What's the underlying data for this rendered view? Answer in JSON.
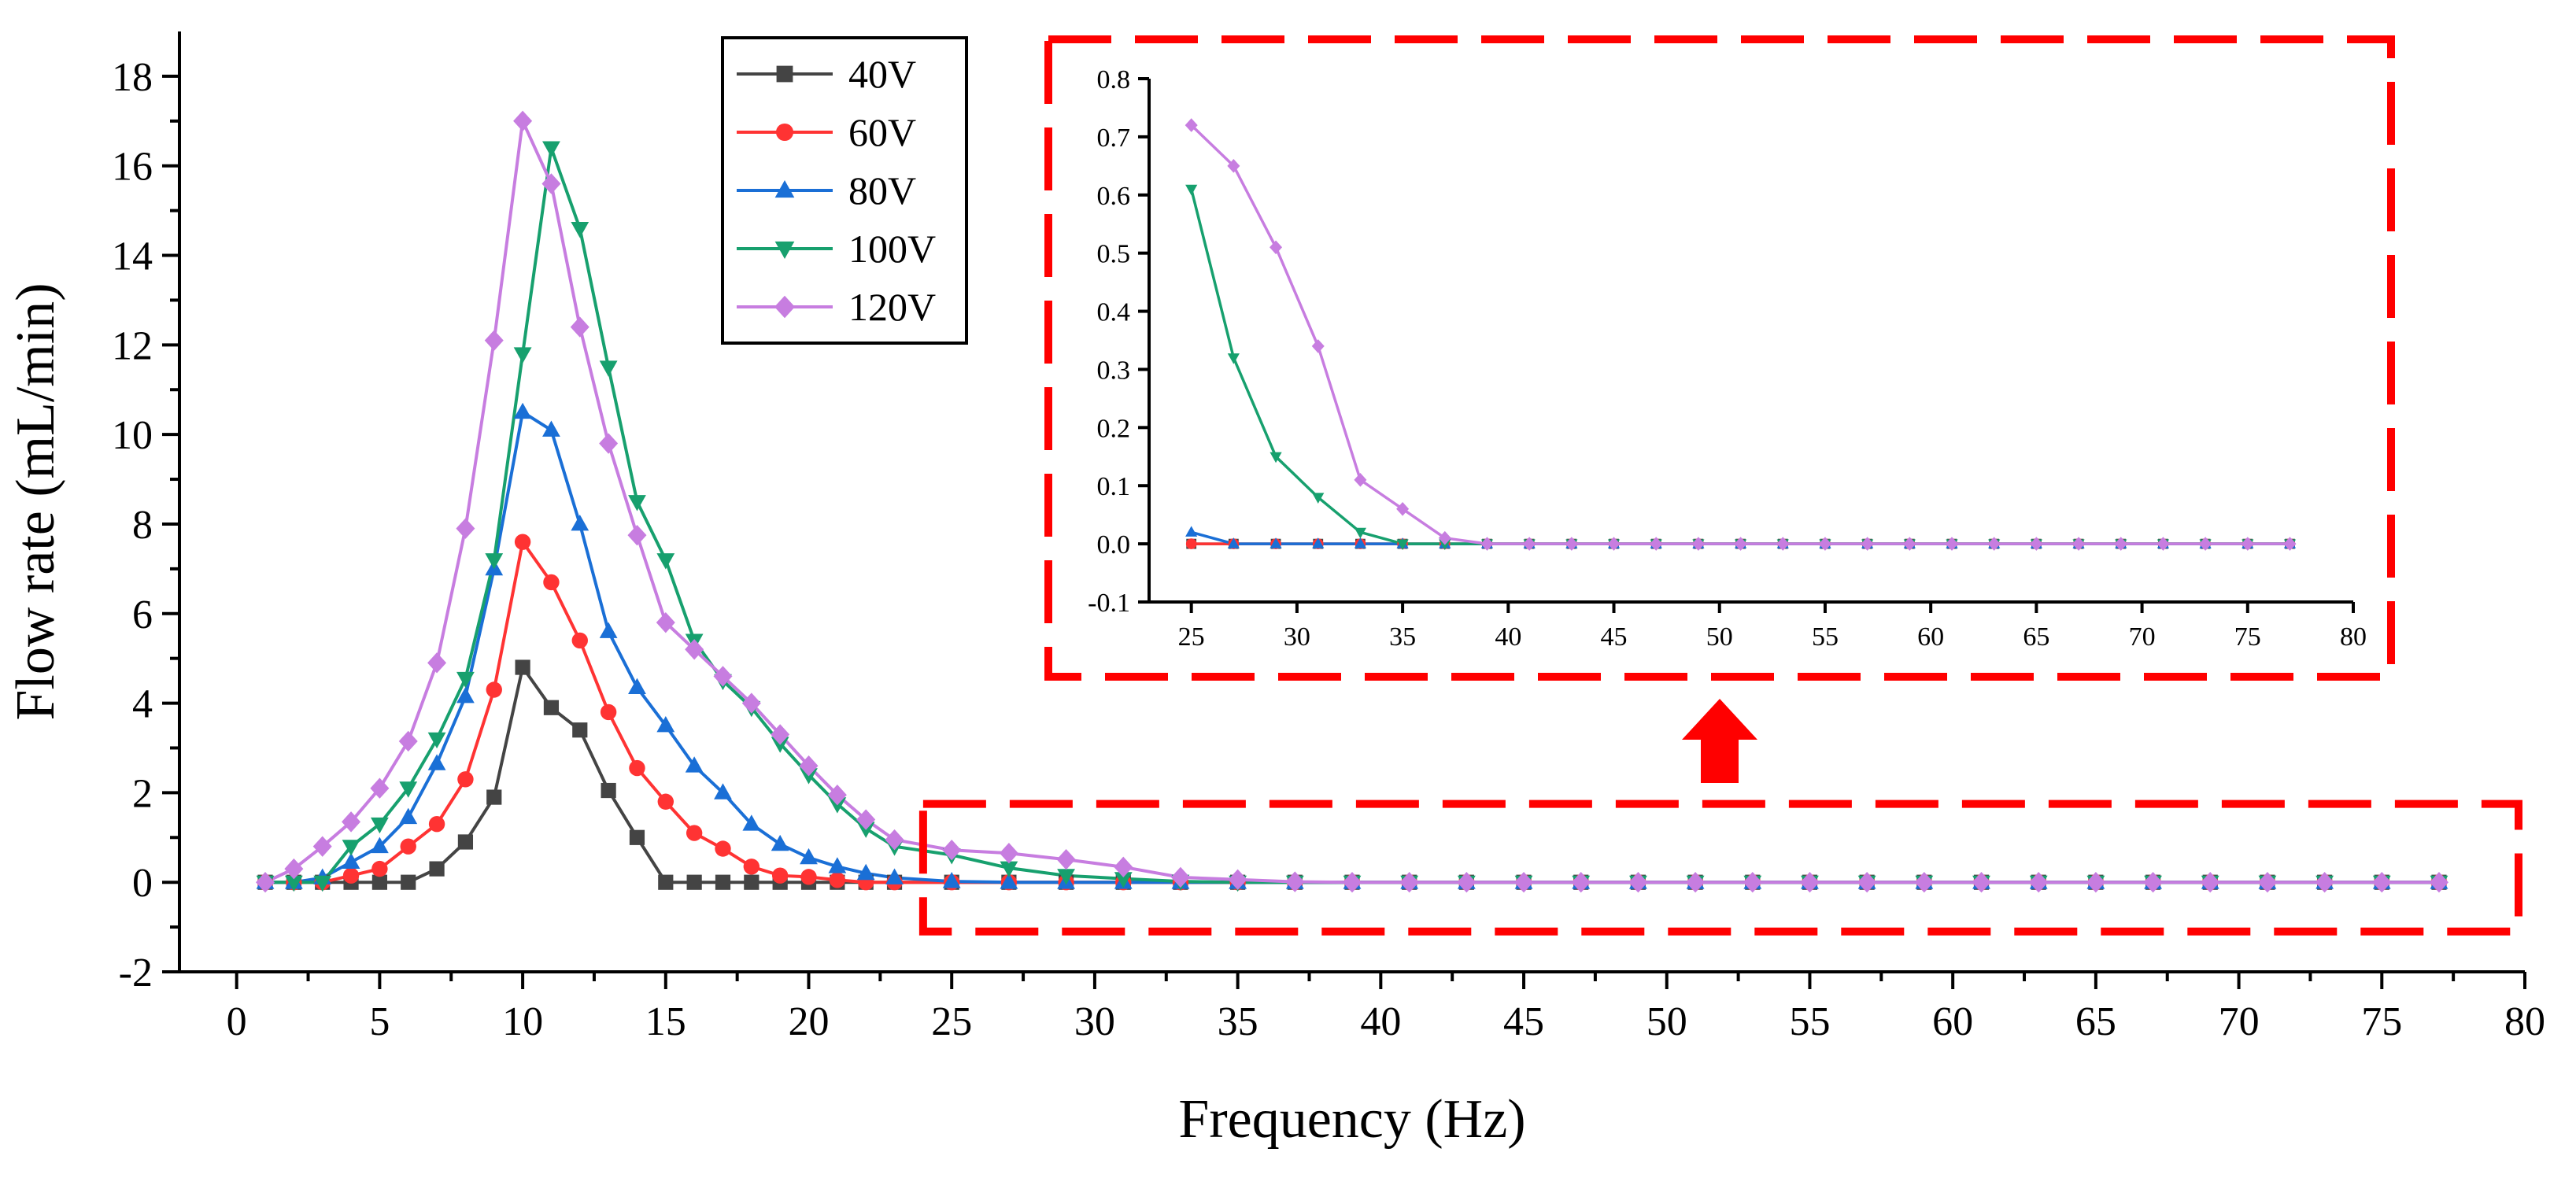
{
  "chart_data": [
    {
      "type": "line",
      "title": "",
      "xlabel": "Frequency (Hz)",
      "ylabel": "Flow rate (mL/min)",
      "xlim": [
        -2,
        80
      ],
      "ylim": [
        -2,
        19
      ],
      "xticks": [
        0,
        5,
        10,
        15,
        20,
        25,
        30,
        35,
        40,
        45,
        50,
        55,
        60,
        65,
        70,
        75,
        80
      ],
      "yticks": [
        -2,
        0,
        2,
        4,
        6,
        8,
        10,
        12,
        14,
        16,
        18
      ],
      "grid": false,
      "legend_position": "top-center",
      "series": [
        {
          "name": "40V",
          "color": "#444444",
          "marker": "square",
          "x": [
            1,
            2,
            3,
            4,
            5,
            6,
            7,
            8,
            9,
            10,
            11,
            12,
            13,
            14,
            15,
            16,
            17,
            18,
            19,
            20,
            21,
            22,
            23,
            25,
            27,
            29,
            31,
            33,
            35,
            37,
            39,
            41,
            43,
            45,
            47,
            49,
            51,
            53,
            55,
            57,
            59,
            61,
            63,
            65,
            67,
            69,
            71,
            73,
            75,
            77
          ],
          "y": [
            0,
            0,
            0,
            0,
            0,
            0,
            0.3,
            0.9,
            1.9,
            4.8,
            3.9,
            3.4,
            2.05,
            1.0,
            0,
            0,
            0,
            0,
            0,
            0,
            0,
            0,
            0,
            0,
            0,
            0,
            0,
            0,
            0,
            0,
            0,
            0,
            0,
            0,
            0,
            0,
            0,
            0,
            0,
            0,
            0,
            0,
            0,
            0,
            0,
            0,
            0,
            0,
            0,
            0
          ]
        },
        {
          "name": "60V",
          "color": "#ff3333",
          "marker": "circle",
          "x": [
            1,
            2,
            3,
            4,
            5,
            6,
            7,
            8,
            9,
            10,
            11,
            12,
            13,
            14,
            15,
            16,
            17,
            18,
            19,
            20,
            21,
            22,
            23,
            25,
            27,
            29,
            31,
            33,
            35,
            37,
            39,
            41,
            43,
            45,
            47,
            49,
            51,
            53,
            55,
            57,
            59,
            61,
            63,
            65,
            67,
            69,
            71,
            73,
            75,
            77
          ],
          "y": [
            0,
            0,
            0,
            0.15,
            0.3,
            0.8,
            1.3,
            2.3,
            4.3,
            7.6,
            6.7,
            5.4,
            3.8,
            2.55,
            1.8,
            1.1,
            0.75,
            0.35,
            0.15,
            0.12,
            0.05,
            0,
            0,
            0,
            0,
            0,
            0,
            0,
            0,
            0,
            0,
            0,
            0,
            0,
            0,
            0,
            0,
            0,
            0,
            0,
            0,
            0,
            0,
            0,
            0,
            0,
            0,
            0,
            0,
            0
          ]
        },
        {
          "name": "80V",
          "color": "#1a6fd6",
          "marker": "triangle-up",
          "x": [
            1,
            2,
            3,
            4,
            5,
            6,
            7,
            8,
            9,
            10,
            11,
            12,
            13,
            14,
            15,
            16,
            17,
            18,
            19,
            20,
            21,
            22,
            23,
            25,
            27,
            29,
            31,
            33,
            35,
            37,
            39,
            41,
            43,
            45,
            47,
            49,
            51,
            53,
            55,
            57,
            59,
            61,
            63,
            65,
            67,
            69,
            71,
            73,
            75,
            77
          ],
          "y": [
            0,
            0,
            0.1,
            0.45,
            0.8,
            1.45,
            2.65,
            4.15,
            7.0,
            10.5,
            10.1,
            8.0,
            5.6,
            4.35,
            3.5,
            2.6,
            2.0,
            1.3,
            0.85,
            0.55,
            0.35,
            0.2,
            0.1,
            0.02,
            0,
            0,
            0,
            0,
            0,
            0,
            0,
            0,
            0,
            0,
            0,
            0,
            0,
            0,
            0,
            0,
            0,
            0,
            0,
            0,
            0,
            0,
            0,
            0,
            0,
            0
          ]
        },
        {
          "name": "100V",
          "color": "#17a06e",
          "marker": "triangle-down",
          "x": [
            1,
            2,
            3,
            4,
            5,
            6,
            7,
            8,
            9,
            10,
            11,
            12,
            13,
            14,
            15,
            16,
            17,
            18,
            19,
            20,
            21,
            22,
            23,
            25,
            27,
            29,
            31,
            33,
            35,
            37,
            39,
            41,
            43,
            45,
            47,
            49,
            51,
            53,
            55,
            57,
            59,
            61,
            63,
            65,
            67,
            69,
            71,
            73,
            75,
            77
          ],
          "y": [
            0,
            0,
            0,
            0.8,
            1.3,
            2.1,
            3.2,
            4.55,
            7.2,
            11.8,
            16.4,
            14.6,
            11.5,
            8.5,
            7.2,
            5.4,
            4.5,
            3.9,
            3.1,
            2.4,
            1.75,
            1.2,
            0.8,
            0.61,
            0.32,
            0.15,
            0.08,
            0.02,
            0,
            0,
            0,
            0,
            0,
            0,
            0,
            0,
            0,
            0,
            0,
            0,
            0,
            0,
            0,
            0,
            0,
            0,
            0,
            0,
            0,
            0
          ]
        },
        {
          "name": "120V",
          "color": "#c77de0",
          "marker": "diamond",
          "x": [
            1,
            2,
            3,
            4,
            5,
            6,
            7,
            8,
            9,
            10,
            11,
            12,
            13,
            14,
            15,
            16,
            17,
            18,
            19,
            20,
            21,
            22,
            23,
            25,
            27,
            29,
            31,
            33,
            35,
            37,
            39,
            41,
            43,
            45,
            47,
            49,
            51,
            53,
            55,
            57,
            59,
            61,
            63,
            65,
            67,
            69,
            71,
            73,
            75,
            77
          ],
          "y": [
            0,
            0.3,
            0.8,
            1.35,
            2.1,
            3.15,
            4.9,
            7.9,
            12.1,
            17.0,
            15.6,
            12.4,
            9.8,
            7.75,
            5.8,
            5.2,
            4.6,
            4.0,
            3.3,
            2.6,
            1.95,
            1.4,
            0.95,
            0.72,
            0.65,
            0.51,
            0.34,
            0.11,
            0.06,
            0.01,
            0,
            0,
            0,
            0,
            0,
            0,
            0,
            0,
            0,
            0,
            0,
            0,
            0,
            0,
            0,
            0,
            0,
            0,
            0,
            0
          ]
        }
      ]
    },
    {
      "type": "line",
      "title": "",
      "xlabel": "",
      "ylabel": "",
      "xlim": [
        23,
        80
      ],
      "ylim": [
        -0.1,
        0.8
      ],
      "xticks": [
        25,
        30,
        35,
        40,
        45,
        50,
        55,
        60,
        65,
        70,
        75,
        80
      ],
      "yticks": [
        -0.1,
        0.0,
        0.1,
        0.2,
        0.3,
        0.4,
        0.5,
        0.6,
        0.7,
        0.8
      ],
      "ytick_labels": [
        "-0.1",
        "0.0",
        "0.1",
        "0.2",
        "0.3",
        "0.4",
        "0.5",
        "0.6",
        "0.7",
        "0.8"
      ],
      "grid": false,
      "series": [
        {
          "color": "#444444",
          "marker": "square",
          "x": [
            25,
            27,
            29,
            31,
            33,
            35,
            37,
            39,
            41,
            43,
            45,
            47,
            49,
            51,
            53,
            55,
            57,
            59,
            61,
            63,
            65,
            67,
            69,
            71,
            73,
            75,
            77
          ],
          "y": [
            0,
            0,
            0,
            0,
            0,
            0,
            0,
            0,
            0,
            0,
            0,
            0,
            0,
            0,
            0,
            0,
            0,
            0,
            0,
            0,
            0,
            0,
            0,
            0,
            0,
            0,
            0
          ]
        },
        {
          "color": "#ff3333",
          "marker": "circle",
          "x": [
            25,
            27,
            29,
            31,
            33,
            35,
            37,
            39,
            41,
            43,
            45,
            47,
            49,
            51,
            53,
            55,
            57,
            59,
            61,
            63,
            65,
            67,
            69,
            71,
            73,
            75,
            77
          ],
          "y": [
            0,
            0,
            0,
            0,
            0,
            0,
            0,
            0,
            0,
            0,
            0,
            0,
            0,
            0,
            0,
            0,
            0,
            0,
            0,
            0,
            0,
            0,
            0,
            0,
            0,
            0,
            0
          ]
        },
        {
          "color": "#1a6fd6",
          "marker": "triangle-up",
          "x": [
            25,
            27,
            29,
            31,
            33,
            35,
            37,
            39,
            41,
            43,
            45,
            47,
            49,
            51,
            53,
            55,
            57,
            59,
            61,
            63,
            65,
            67,
            69,
            71,
            73,
            75,
            77
          ],
          "y": [
            0.02,
            0,
            0,
            0,
            0,
            0,
            0,
            0,
            0,
            0,
            0,
            0,
            0,
            0,
            0,
            0,
            0,
            0,
            0,
            0,
            0,
            0,
            0,
            0,
            0,
            0,
            0
          ]
        },
        {
          "color": "#17a06e",
          "marker": "triangle-down",
          "x": [
            25,
            27,
            29,
            31,
            33,
            35,
            37,
            39,
            41,
            43,
            45,
            47,
            49,
            51,
            53,
            55,
            57,
            59,
            61,
            63,
            65,
            67,
            69,
            71,
            73,
            75,
            77
          ],
          "y": [
            0.61,
            0.32,
            0.15,
            0.08,
            0.02,
            0,
            0,
            0,
            0,
            0,
            0,
            0,
            0,
            0,
            0,
            0,
            0,
            0,
            0,
            0,
            0,
            0,
            0,
            0,
            0,
            0,
            0
          ]
        },
        {
          "color": "#c77de0",
          "marker": "diamond",
          "x": [
            25,
            27,
            29,
            31,
            33,
            35,
            37,
            39,
            41,
            43,
            45,
            47,
            49,
            51,
            53,
            55,
            57,
            59,
            61,
            63,
            65,
            67,
            69,
            71,
            73,
            75,
            77
          ],
          "y": [
            0.72,
            0.65,
            0.51,
            0.34,
            0.11,
            0.06,
            0.01,
            0,
            0,
            0,
            0,
            0,
            0,
            0,
            0,
            0,
            0,
            0,
            0,
            0,
            0,
            0,
            0,
            0,
            0,
            0,
            0
          ]
        }
      ]
    }
  ],
  "annotations": {
    "zoom_region_color": "#ff0000",
    "zoom_region_x": [
      24,
      80
    ],
    "zoom_region_y": [
      -1.1,
      1.75
    ],
    "arrow_direction": "up"
  }
}
